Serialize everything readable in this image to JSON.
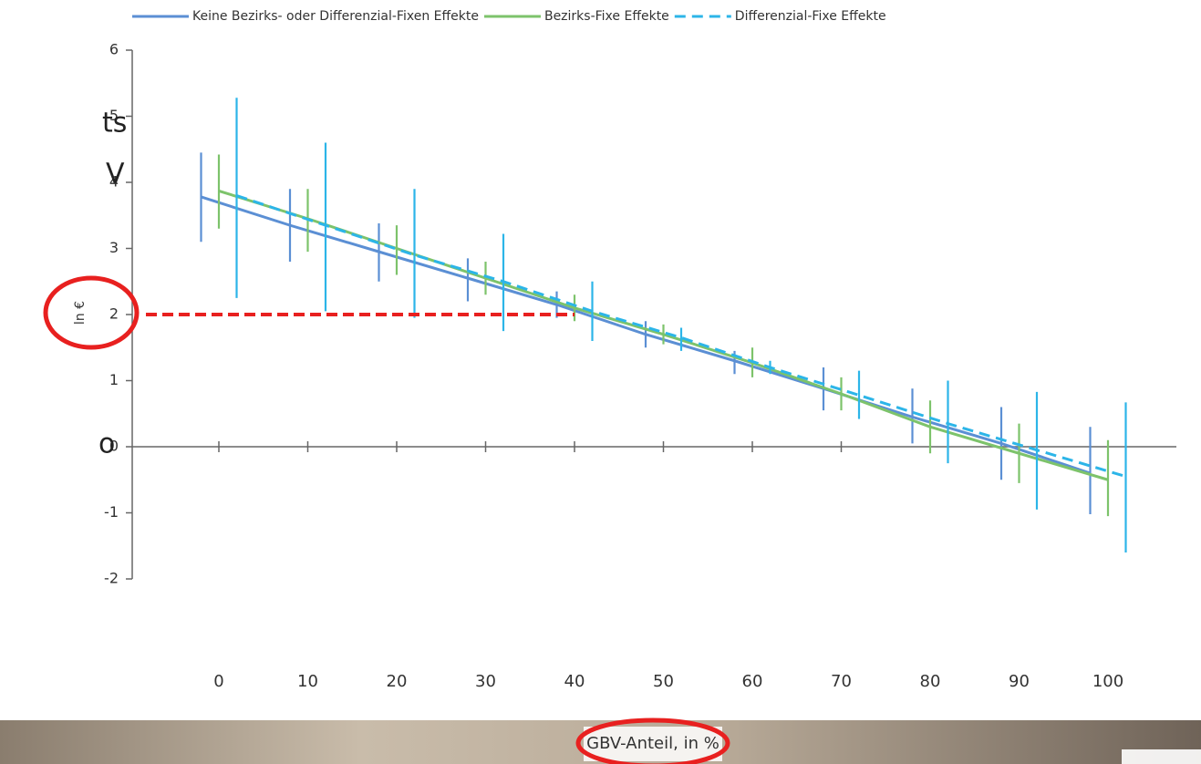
{
  "chart_data": {
    "type": "errorbar-line",
    "legend": "top",
    "y_label": "ln €",
    "x_label": "GBV-Anteil, in %",
    "side_texts": [
      "ts",
      "V",
      "o"
    ],
    "xlim": [
      -10,
      108
    ],
    "xticks": [
      0,
      10,
      20,
      30,
      40,
      50,
      60,
      70,
      80,
      90,
      100
    ],
    "ylim": [
      -2,
      6
    ],
    "yticks": [
      -2,
      -1,
      0,
      1,
      2,
      3,
      4,
      5,
      6
    ],
    "reference": {
      "x": 40,
      "y": 2,
      "color": "#e8201f"
    },
    "series": [
      {
        "name": "Keine Bezirks- oder Differenzial-Fixen Effekte",
        "color": "#5b8fd4",
        "dashed": false,
        "x": [
          -2,
          8,
          18,
          28,
          38,
          48,
          58,
          68,
          78,
          88,
          98
        ],
        "values": [
          3.78,
          3.35,
          2.95,
          2.55,
          2.15,
          1.7,
          1.3,
          0.88,
          0.45,
          0.05,
          -0.4
        ],
        "low": [
          3.1,
          2.8,
          2.5,
          2.2,
          1.95,
          1.5,
          1.1,
          0.55,
          0.05,
          -0.5,
          -1.02
        ],
        "high": [
          4.45,
          3.9,
          3.38,
          2.85,
          2.35,
          1.9,
          1.45,
          1.2,
          0.88,
          0.6,
          0.3
        ]
      },
      {
        "name": "Bezirks-Fixe Effekte",
        "color": "#7dc36b",
        "dashed": false,
        "x": [
          0,
          10,
          20,
          30,
          40,
          50,
          60,
          70,
          80,
          90,
          100
        ],
        "values": [
          3.87,
          3.45,
          3.0,
          2.55,
          2.1,
          1.7,
          1.27,
          0.8,
          0.3,
          -0.1,
          -0.5
        ],
        "low": [
          3.3,
          2.95,
          2.6,
          2.3,
          1.9,
          1.55,
          1.05,
          0.55,
          -0.1,
          -0.55,
          -1.05
        ],
        "high": [
          4.42,
          3.9,
          3.35,
          2.8,
          2.3,
          1.85,
          1.5,
          1.05,
          0.7,
          0.35,
          0.1
        ]
      },
      {
        "name": "Differenzial-Fixe Effekte",
        "color": "#2cb5e8",
        "dashed": true,
        "x": [
          2,
          12,
          22,
          32,
          42,
          52,
          62,
          72,
          82,
          92,
          102
        ],
        "values": [
          3.8,
          3.35,
          2.9,
          2.5,
          2.05,
          1.65,
          1.2,
          0.78,
          0.35,
          -0.05,
          -0.45
        ],
        "low": [
          2.25,
          2.05,
          1.95,
          1.75,
          1.6,
          1.45,
          1.1,
          0.42,
          -0.25,
          -0.95,
          -1.6
        ],
        "high": [
          5.28,
          4.6,
          3.9,
          3.22,
          2.5,
          1.8,
          1.3,
          1.15,
          1.0,
          0.83,
          0.67
        ]
      }
    ]
  }
}
